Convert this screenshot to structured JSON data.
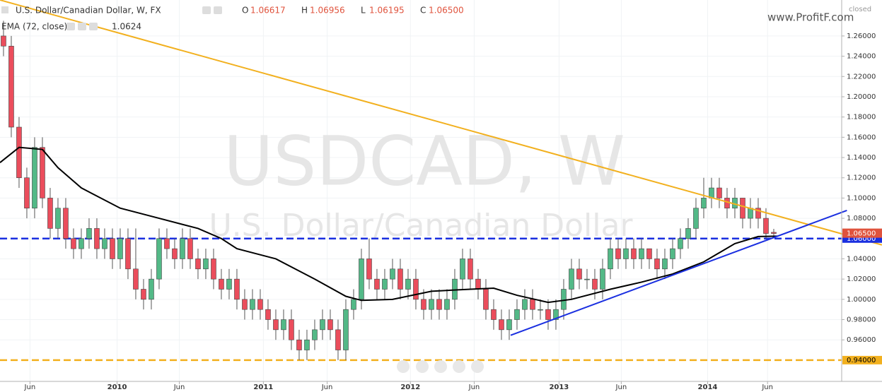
{
  "chart_data": {
    "type": "candlestick",
    "title": "U.S. Dollar/Canadian Dollar, W, FX",
    "ohlc_labels": [
      "O",
      "H",
      "L",
      "C"
    ],
    "ohlc_values": [
      "1.06617",
      "1.06956",
      "1.06195",
      "1.06500"
    ],
    "indicator": {
      "name": "EMA (72, close)",
      "value": "1.0624"
    },
    "watermark": [
      "USDCAD, W",
      "U.S. Dollar/Canadian Dollar"
    ],
    "brand": "www.ProfitF.com",
    "status": "closed",
    "up_color": "#53b987",
    "down_color": "#eb4d5c",
    "open": [
      1.26,
      1.25,
      1.17,
      1.12,
      1.09,
      1.15,
      1.1,
      1.07,
      1.09,
      1.06,
      1.05,
      1.06,
      1.07,
      1.05,
      1.06,
      1.04,
      1.06,
      1.03,
      1.01,
      1.0,
      1.02,
      1.06,
      1.05,
      1.04,
      1.06,
      1.04,
      1.03,
      1.04,
      1.02,
      1.01,
      1.02,
      1.0,
      0.99,
      1.0,
      0.99,
      0.98,
      0.97,
      0.98,
      0.96,
      0.95,
      0.96,
      0.97,
      0.98,
      0.97,
      0.95,
      0.99,
      1.0,
      1.04,
      1.02,
      1.01,
      1.02,
      1.03,
      1.01,
      1.02,
      1.0,
      0.99,
      1.0,
      0.99,
      1.0,
      1.02,
      1.04,
      1.02,
      1.01,
      0.99,
      0.98,
      0.97,
      0.98,
      0.99,
      1.0,
      0.99,
      0.99,
      0.98,
      0.99,
      1.01,
      1.03,
      1.02,
      1.02,
      1.01,
      1.03,
      1.05,
      1.04,
      1.05,
      1.04,
      1.05,
      1.04,
      1.03,
      1.04,
      1.05,
      1.06,
      1.07,
      1.09,
      1.1,
      1.11,
      1.1,
      1.09,
      1.1,
      1.08,
      1.09,
      1.08,
      1.06617
    ],
    "high": [
      1.275,
      1.26,
      1.18,
      1.13,
      1.16,
      1.16,
      1.11,
      1.1,
      1.1,
      1.07,
      1.07,
      1.08,
      1.08,
      1.07,
      1.07,
      1.07,
      1.07,
      1.07,
      1.02,
      1.03,
      1.07,
      1.07,
      1.06,
      1.07,
      1.07,
      1.05,
      1.05,
      1.05,
      1.03,
      1.03,
      1.03,
      1.01,
      1.01,
      1.01,
      1.0,
      0.99,
      0.99,
      0.99,
      0.97,
      0.97,
      0.98,
      0.99,
      0.99,
      0.98,
      1.0,
      1.01,
      1.05,
      1.06,
      1.03,
      1.03,
      1.04,
      1.04,
      1.03,
      1.03,
      1.01,
      1.01,
      1.01,
      1.01,
      1.03,
      1.05,
      1.05,
      1.03,
      1.02,
      1.0,
      0.99,
      0.99,
      1.0,
      1.01,
      1.01,
      1.0,
      1.0,
      1.0,
      1.02,
      1.04,
      1.04,
      1.03,
      1.03,
      1.04,
      1.06,
      1.06,
      1.06,
      1.06,
      1.06,
      1.05,
      1.05,
      1.05,
      1.06,
      1.07,
      1.08,
      1.1,
      1.12,
      1.12,
      1.12,
      1.11,
      1.11,
      1.1,
      1.1,
      1.1,
      1.09,
      1.06956
    ],
    "low": [
      1.24,
      1.16,
      1.11,
      1.08,
      1.08,
      1.09,
      1.06,
      1.06,
      1.05,
      1.04,
      1.04,
      1.05,
      1.04,
      1.04,
      1.03,
      1.03,
      1.02,
      1.0,
      0.99,
      0.99,
      1.01,
      1.04,
      1.03,
      1.03,
      1.03,
      1.02,
      1.02,
      1.01,
      1.0,
      1.0,
      0.99,
      0.98,
      0.98,
      0.98,
      0.97,
      0.96,
      0.96,
      0.95,
      0.94,
      0.94,
      0.95,
      0.96,
      0.96,
      0.94,
      0.94,
      0.98,
      0.99,
      1.01,
      1.0,
      1.0,
      1.01,
      1.0,
      1.0,
      0.99,
      0.98,
      0.98,
      0.98,
      0.98,
      0.99,
      1.01,
      1.01,
      1.0,
      0.98,
      0.97,
      0.96,
      0.96,
      0.97,
      0.98,
      0.98,
      0.98,
      0.97,
      0.97,
      0.98,
      1.0,
      1.01,
      1.01,
      1.0,
      1.0,
      1.02,
      1.03,
      1.03,
      1.03,
      1.03,
      1.03,
      1.02,
      1.02,
      1.03,
      1.04,
      1.05,
      1.06,
      1.08,
      1.09,
      1.09,
      1.08,
      1.08,
      1.07,
      1.07,
      1.07,
      1.06,
      1.06195
    ],
    "close": [
      1.25,
      1.17,
      1.12,
      1.09,
      1.15,
      1.1,
      1.07,
      1.09,
      1.06,
      1.05,
      1.06,
      1.07,
      1.05,
      1.06,
      1.04,
      1.06,
      1.03,
      1.01,
      1.0,
      1.02,
      1.06,
      1.05,
      1.04,
      1.06,
      1.04,
      1.03,
      1.04,
      1.02,
      1.01,
      1.02,
      1.0,
      0.99,
      1.0,
      0.99,
      0.98,
      0.97,
      0.98,
      0.96,
      0.95,
      0.96,
      0.97,
      0.98,
      0.97,
      0.95,
      0.99,
      1.0,
      1.04,
      1.02,
      1.01,
      1.02,
      1.03,
      1.01,
      1.02,
      1.0,
      0.99,
      1.0,
      0.99,
      1.0,
      1.02,
      1.04,
      1.02,
      1.01,
      0.99,
      0.98,
      0.97,
      0.98,
      0.99,
      1.0,
      0.99,
      0.99,
      0.98,
      0.99,
      1.01,
      1.03,
      1.02,
      1.02,
      1.01,
      1.03,
      1.05,
      1.04,
      1.05,
      1.04,
      1.05,
      1.04,
      1.03,
      1.04,
      1.05,
      1.06,
      1.07,
      1.09,
      1.1,
      1.11,
      1.1,
      1.09,
      1.1,
      1.08,
      1.09,
      1.08,
      1.065,
      1.065
    ],
    "ema": {
      "color": "#000000",
      "x": [
        -0.45,
        2,
        5,
        7,
        10,
        15,
        20,
        25,
        28,
        30,
        35,
        40,
        44,
        46,
        50,
        55,
        60,
        63,
        66,
        70,
        73,
        78,
        82,
        86,
        90,
        94,
        97,
        99.5
      ],
      "values": [
        1.135,
        1.15,
        1.148,
        1.13,
        1.11,
        1.09,
        1.08,
        1.07,
        1.06,
        1.05,
        1.04,
        1.02,
        1.003,
        0.999,
        1.0,
        1.008,
        1.01,
        1.011,
        1.004,
        0.997,
        1.0,
        1.01,
        1.017,
        1.025,
        1.037,
        1.055,
        1.062,
        1.0624
      ]
    },
    "trendlines": [
      {
        "color": "#f2b01e",
        "x": [
          -0.45,
          112.9
        ],
        "y": [
          1.2955,
          1.0537
        ]
      },
      {
        "color": "#1a2fe0",
        "x": [
          65.18,
          108.4
        ],
        "y": [
          0.9645,
          1.0878
        ]
      }
    ],
    "hlines": [
      {
        "color": "#1a2fe0",
        "value": 1.06,
        "label": "1.06000"
      },
      {
        "color": "#f2b01e",
        "value": 0.94,
        "label": "0.94000"
      }
    ],
    "last_price": {
      "value": 1.065,
      "label": "1.06500",
      "color": "#e0533d"
    },
    "xlim": [
      -0.45,
      107.73
    ],
    "ylim": [
      0.919,
      1.2955
    ],
    "xticks": [
      {
        "value": 3.4,
        "label": "Jun"
      },
      {
        "value": 14.6,
        "label": "2010"
      },
      {
        "value": 22.6,
        "label": "Jun"
      },
      {
        "value": 33.4,
        "label": "2011"
      },
      {
        "value": 41.6,
        "label": "Jun"
      },
      {
        "value": 52.3,
        "label": "2012"
      },
      {
        "value": 60.5,
        "label": "Jun"
      },
      {
        "value": 71.4,
        "label": "2013"
      },
      {
        "value": 79.4,
        "label": "Jun"
      },
      {
        "value": 90.5,
        "label": "2014"
      },
      {
        "value": 98.2,
        "label": "Jun"
      }
    ],
    "yticks": [
      {
        "value": 0.96,
        "label": "0.96000"
      },
      {
        "value": 0.98,
        "label": "0.98000"
      },
      {
        "value": 1.0,
        "label": "1.00000"
      },
      {
        "value": 1.02,
        "label": "1.02000"
      },
      {
        "value": 1.04,
        "label": "1.04000"
      },
      {
        "value": 1.06,
        "label": "1.06000"
      },
      {
        "value": 1.08,
        "label": "1.08000"
      },
      {
        "value": 1.1,
        "label": "1.10000"
      },
      {
        "value": 1.12,
        "label": "1.12000"
      },
      {
        "value": 1.14,
        "label": "1.14000"
      },
      {
        "value": 1.16,
        "label": "1.16000"
      },
      {
        "value": 1.18,
        "label": "1.18000"
      },
      {
        "value": 1.2,
        "label": "1.20000"
      },
      {
        "value": 1.22,
        "label": "1.22000"
      },
      {
        "value": 1.24,
        "label": "1.24000"
      },
      {
        "value": 1.26,
        "label": "1.26000"
      }
    ],
    "grid": true
  }
}
